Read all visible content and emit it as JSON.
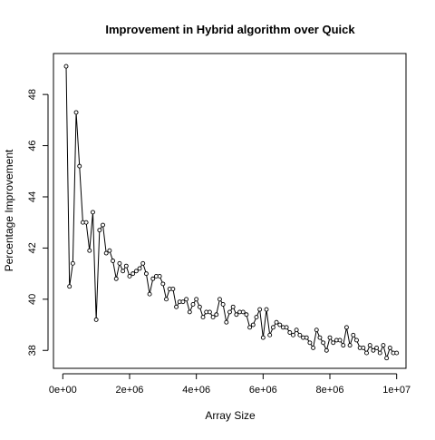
{
  "chart_data": {
    "type": "line",
    "title": "Improvement in Hybrid algorithm over Quick",
    "xlabel": "Array Size",
    "ylabel": "Percentage Improvement",
    "xlim": [
      -280000,
      10280000
    ],
    "ylim": [
      37.3,
      49.6
    ],
    "x_ticks": [
      0,
      2000000,
      4000000,
      6000000,
      8000000,
      10000000
    ],
    "x_tick_labels": [
      "0e+00",
      "2e+06",
      "4e+06",
      "6e+06",
      "8e+06",
      "1e+07"
    ],
    "y_ticks": [
      38,
      40,
      42,
      44,
      46,
      48
    ],
    "y_tick_labels": [
      "38",
      "40",
      "42",
      "44",
      "46",
      "48"
    ],
    "grid": false,
    "legend": "none",
    "series": [
      {
        "marker": "open-circle",
        "line": "solid",
        "x": [
          100000,
          200000,
          300000,
          400000,
          500000,
          600000,
          700000,
          800000,
          900000,
          1000000,
          1100000,
          1200000,
          1300000,
          1400000,
          1500000,
          1600000,
          1700000,
          1800000,
          1900000,
          2000000,
          2100000,
          2200000,
          2300000,
          2400000,
          2500000,
          2600000,
          2700000,
          2800000,
          2900000,
          3000000,
          3100000,
          3200000,
          3300000,
          3400000,
          3500000,
          3600000,
          3700000,
          3800000,
          3900000,
          4000000,
          4100000,
          4200000,
          4300000,
          4400000,
          4500000,
          4600000,
          4700000,
          4800000,
          4900000,
          5000000,
          5100000,
          5200000,
          5300000,
          5400000,
          5500000,
          5600000,
          5700000,
          5800000,
          5900000,
          6000000,
          6100000,
          6200000,
          6300000,
          6400000,
          6500000,
          6600000,
          6700000,
          6800000,
          6900000,
          7000000,
          7100000,
          7200000,
          7300000,
          7400000,
          7500000,
          7600000,
          7700000,
          7800000,
          7900000,
          8000000,
          8100000,
          8200000,
          8300000,
          8400000,
          8500000,
          8600000,
          8700000,
          8800000,
          8900000,
          9000000,
          9100000,
          9200000,
          9300000,
          9400000,
          9500000,
          9600000,
          9700000,
          9800000,
          9900000,
          10000000
        ],
        "y": [
          49.1,
          40.5,
          41.4,
          47.3,
          45.2,
          43.0,
          43.0,
          41.9,
          43.4,
          39.2,
          42.7,
          42.9,
          41.8,
          41.9,
          41.5,
          40.8,
          41.4,
          41.1,
          41.3,
          40.9,
          41.0,
          41.1,
          41.2,
          41.4,
          41.0,
          40.2,
          40.8,
          40.9,
          40.9,
          40.6,
          40.0,
          40.4,
          40.4,
          39.7,
          39.9,
          39.9,
          40.0,
          39.5,
          39.8,
          40.0,
          39.7,
          39.3,
          39.5,
          39.5,
          39.3,
          39.4,
          40.0,
          39.8,
          39.1,
          39.5,
          39.7,
          39.4,
          39.5,
          39.5,
          39.4,
          38.9,
          39.0,
          39.3,
          39.6,
          38.5,
          39.6,
          38.6,
          38.9,
          39.1,
          39.0,
          38.9,
          38.9,
          38.7,
          38.6,
          38.8,
          38.6,
          38.5,
          38.5,
          38.3,
          38.1,
          38.8,
          38.5,
          38.3,
          38.0,
          38.5,
          38.3,
          38.4,
          38.4,
          38.2,
          38.9,
          38.2,
          38.6,
          38.4,
          38.1,
          38.1,
          37.9,
          38.2,
          38.0,
          38.1,
          37.9,
          38.2,
          37.7,
          38.1,
          37.9,
          37.9
        ]
      }
    ]
  }
}
